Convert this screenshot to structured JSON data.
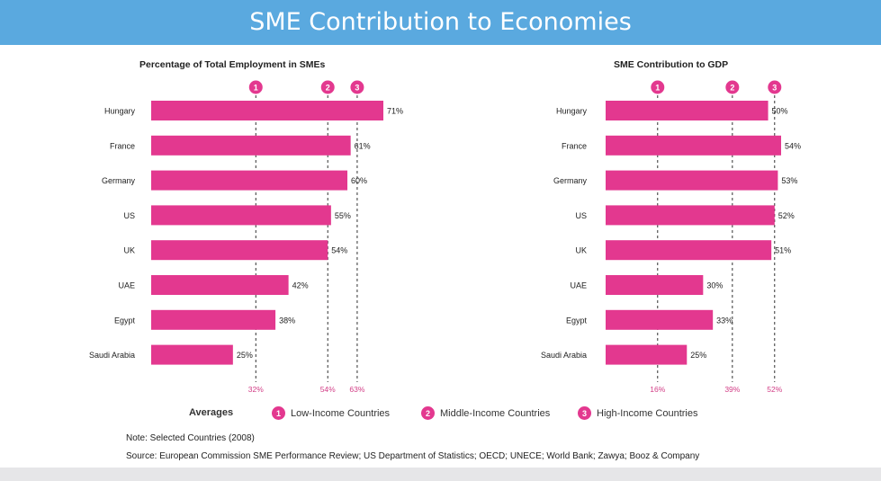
{
  "header": {
    "title": "SME Contribution to Economies"
  },
  "colors": {
    "bar": "#e3388f",
    "accent_text": "#d23d86",
    "banner": "#5aa9df"
  },
  "chart_data": [
    {
      "type": "bar",
      "orientation": "horizontal",
      "title": "Percentage of Total Employment in SMEs",
      "categories": [
        "Hungary",
        "France",
        "Germany",
        "US",
        "UK",
        "UAE",
        "Egypt",
        "Saudi Arabia"
      ],
      "values": [
        71,
        61,
        60,
        55,
        54,
        42,
        38,
        25
      ],
      "value_labels": [
        "71%",
        "61%",
        "60%",
        "55%",
        "54%",
        "42%",
        "38%",
        "25%"
      ],
      "xlim": [
        0,
        71
      ],
      "reference_lines": [
        {
          "marker": "1",
          "value": 32,
          "label": "32%"
        },
        {
          "marker": "2",
          "value": 54,
          "label": "54%"
        },
        {
          "marker": "3",
          "value": 63,
          "label": "63%"
        }
      ]
    },
    {
      "type": "bar",
      "orientation": "horizontal",
      "title": "SME Contribution to GDP",
      "categories": [
        "Hungary",
        "France",
        "Germany",
        "US",
        "UK",
        "UAE",
        "Egypt",
        "Saudi Arabia"
      ],
      "values": [
        50,
        54,
        53,
        52,
        51,
        30,
        33,
        25
      ],
      "value_labels": [
        "50%",
        "54%",
        "53%",
        "52%",
        "51%",
        "30%",
        "33%",
        "25%"
      ],
      "xlim": [
        0,
        54
      ],
      "reference_lines": [
        {
          "marker": "1",
          "value": 16,
          "label": "16%"
        },
        {
          "marker": "2",
          "value": 39,
          "label": "39%"
        },
        {
          "marker": "3",
          "value": 52,
          "label": "52%"
        }
      ]
    }
  ],
  "legend": {
    "title": "Averages",
    "items": [
      {
        "marker": "1",
        "label": "Low-Income Countries"
      },
      {
        "marker": "2",
        "label": "Middle-Income Countries"
      },
      {
        "marker": "3",
        "label": "High-Income Countries"
      }
    ]
  },
  "footer": {
    "note": "Note: Selected Countries (2008)",
    "source": "Source: European Commission SME Performance Review; US Department of Statistics; OECD; UNECE; World Bank; Zawya; Booz & Company"
  }
}
